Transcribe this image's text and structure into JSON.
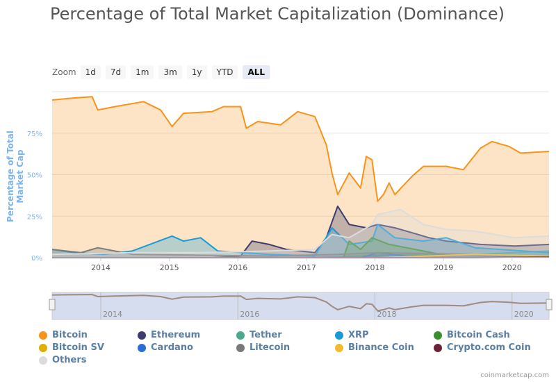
{
  "chart_data": {
    "type": "area",
    "title": "Percentage of Total Market Capitalization (Dominance)",
    "ylabel": "Percentage of Total Market Cap",
    "xlabel": "",
    "ylim": [
      0,
      100
    ],
    "yticks": [
      "0%",
      "25%",
      "50%",
      "75%"
    ],
    "xticks": [
      "2014",
      "2015",
      "2016",
      "2017",
      "2018",
      "2019",
      "2020"
    ],
    "xrange": [
      "2013-04",
      "2020-07"
    ],
    "grid": true,
    "legend_position": "bottom",
    "series": [
      {
        "name": "Bitcoin",
        "color": "#f7931a",
        "points": [
          [
            "2013-04",
            95
          ],
          [
            "2013-07",
            96
          ],
          [
            "2013-11",
            97
          ],
          [
            "2013-12",
            89
          ],
          [
            "2014-03",
            91
          ],
          [
            "2014-08",
            94
          ],
          [
            "2014-11",
            89
          ],
          [
            "2015-01",
            79
          ],
          [
            "2015-03",
            87
          ],
          [
            "2015-08",
            88
          ],
          [
            "2015-10",
            91
          ],
          [
            "2016-01",
            91
          ],
          [
            "2016-02",
            78
          ],
          [
            "2016-04",
            82
          ],
          [
            "2016-08",
            80
          ],
          [
            "2016-11",
            88
          ],
          [
            "2017-02",
            85
          ],
          [
            "2017-04",
            68
          ],
          [
            "2017-05",
            51
          ],
          [
            "2017-06",
            38
          ],
          [
            "2017-08",
            51
          ],
          [
            "2017-10",
            42
          ],
          [
            "2017-11",
            61
          ],
          [
            "2017-12",
            59
          ],
          [
            "2018-01",
            34
          ],
          [
            "2018-02",
            38
          ],
          [
            "2018-03",
            45
          ],
          [
            "2018-04",
            38
          ],
          [
            "2018-07",
            49
          ],
          [
            "2018-09",
            55
          ],
          [
            "2019-01",
            55
          ],
          [
            "2019-04",
            53
          ],
          [
            "2019-07",
            66
          ],
          [
            "2019-09",
            70
          ],
          [
            "2019-12",
            67
          ],
          [
            "2020-02",
            63
          ],
          [
            "2020-07",
            64
          ]
        ]
      },
      {
        "name": "Ethereum",
        "color": "#3c3c6e",
        "points": [
          [
            "2013-04",
            0
          ],
          [
            "2015-08",
            0
          ],
          [
            "2016-01",
            1
          ],
          [
            "2016-03",
            10
          ],
          [
            "2016-06",
            8
          ],
          [
            "2016-09",
            5
          ],
          [
            "2017-02",
            3
          ],
          [
            "2017-04",
            12
          ],
          [
            "2017-06",
            31
          ],
          [
            "2017-08",
            20
          ],
          [
            "2017-11",
            18
          ],
          [
            "2018-01",
            20
          ],
          [
            "2018-04",
            18
          ],
          [
            "2018-07",
            15
          ],
          [
            "2018-10",
            12
          ],
          [
            "2019-01",
            10
          ],
          [
            "2019-07",
            8
          ],
          [
            "2020-01",
            7
          ],
          [
            "2020-07",
            8
          ]
        ]
      },
      {
        "name": "Tether",
        "color": "#4aa98c",
        "points": [
          [
            "2013-04",
            0
          ],
          [
            "2017-01",
            0
          ],
          [
            "2017-10",
            1
          ],
          [
            "2018-06",
            2
          ],
          [
            "2019-06",
            2
          ],
          [
            "2020-07",
            4
          ]
        ]
      },
      {
        "name": "XRP",
        "color": "#1a9ad6",
        "points": [
          [
            "2013-04",
            5
          ],
          [
            "2013-08",
            3
          ],
          [
            "2014-01",
            2
          ],
          [
            "2014-06",
            4
          ],
          [
            "2015-01",
            13
          ],
          [
            "2015-03",
            10
          ],
          [
            "2015-06",
            12
          ],
          [
            "2015-09",
            4
          ],
          [
            "2016-06",
            2
          ],
          [
            "2017-02",
            1
          ],
          [
            "2017-05",
            18
          ],
          [
            "2017-08",
            8
          ],
          [
            "2017-12",
            10
          ],
          [
            "2018-01",
            20
          ],
          [
            "2018-04",
            12
          ],
          [
            "2018-09",
            10
          ],
          [
            "2019-01",
            12
          ],
          [
            "2019-06",
            6
          ],
          [
            "2020-07",
            3
          ]
        ]
      },
      {
        "name": "Bitcoin Cash",
        "color": "#3a8f2e",
        "points": [
          [
            "2013-04",
            0
          ],
          [
            "2017-07",
            0
          ],
          [
            "2017-08",
            10
          ],
          [
            "2017-10",
            5
          ],
          [
            "2017-12",
            12
          ],
          [
            "2018-03",
            8
          ],
          [
            "2018-09",
            4
          ],
          [
            "2018-12",
            2
          ],
          [
            "2020-07",
            1
          ]
        ]
      },
      {
        "name": "Bitcoin SV",
        "color": "#e0b000",
        "points": [
          [
            "2013-04",
            0
          ],
          [
            "2018-11",
            0
          ],
          [
            "2018-12",
            1
          ],
          [
            "2020-07",
            1
          ]
        ]
      },
      {
        "name": "Cardano",
        "color": "#2a6fd6",
        "points": [
          [
            "2013-04",
            0
          ],
          [
            "2017-10",
            0
          ],
          [
            "2018-01",
            3
          ],
          [
            "2018-06",
            1
          ],
          [
            "2020-07",
            1
          ]
        ]
      },
      {
        "name": "Litecoin",
        "color": "#7a7a7a",
        "points": [
          [
            "2013-04",
            5
          ],
          [
            "2013-09",
            3
          ],
          [
            "2013-12",
            6
          ],
          [
            "2014-06",
            2
          ],
          [
            "2016-06",
            1
          ],
          [
            "2017-06",
            2
          ],
          [
            "2018-01",
            3
          ],
          [
            "2019-06",
            2
          ],
          [
            "2020-07",
            1
          ]
        ]
      },
      {
        "name": "Binance Coin",
        "color": "#f3ba2f",
        "points": [
          [
            "2013-04",
            0
          ],
          [
            "2018-01",
            0
          ],
          [
            "2019-06",
            2
          ],
          [
            "2020-07",
            1
          ]
        ]
      },
      {
        "name": "Crypto.com Coin",
        "color": "#6b2437",
        "points": [
          [
            "2013-04",
            0
          ],
          [
            "2019-06",
            0
          ],
          [
            "2020-07",
            0.5
          ]
        ]
      },
      {
        "name": "Others",
        "color": "#dcdcdc",
        "points": [
          [
            "2013-04",
            2
          ],
          [
            "2014-06",
            3
          ],
          [
            "2015-06",
            3
          ],
          [
            "2016-06",
            4
          ],
          [
            "2017-02",
            5
          ],
          [
            "2017-05",
            14
          ],
          [
            "2017-08",
            12
          ],
          [
            "2017-12",
            20
          ],
          [
            "2018-01",
            26
          ],
          [
            "2018-05",
            29
          ],
          [
            "2018-09",
            20
          ],
          [
            "2019-01",
            17
          ],
          [
            "2019-06",
            16
          ],
          [
            "2020-01",
            12
          ],
          [
            "2020-07",
            13
          ]
        ]
      }
    ]
  },
  "zoom": {
    "label": "Zoom",
    "buttons": [
      "1d",
      "7d",
      "1m",
      "3m",
      "1y",
      "YTD",
      "ALL"
    ],
    "selected": "ALL"
  },
  "navigator": {
    "xticks": [
      "2014",
      "2016",
      "2018",
      "2020"
    ]
  },
  "credit": "coinmarketcap.com"
}
